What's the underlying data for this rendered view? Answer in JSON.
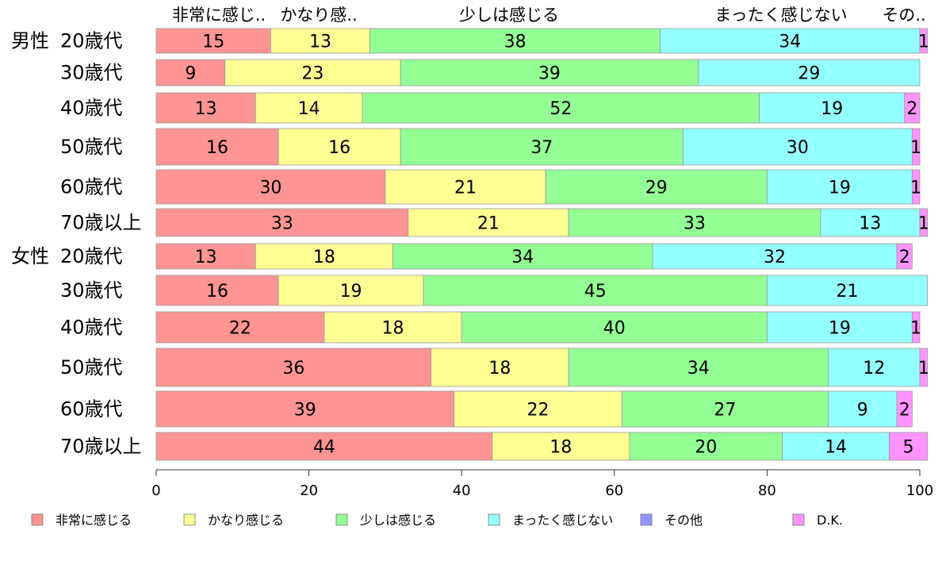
{
  "chart_data": {
    "type": "bar",
    "orientation": "horizontal",
    "stacked": true,
    "xlim": [
      0,
      100
    ],
    "x_ticks": [
      "0",
      "20",
      "40",
      "60",
      "80",
      "100"
    ],
    "column_labels": [
      "非常に感じ..",
      "かなり感..",
      "少しは感じる",
      "まったく感じない",
      "その.."
    ],
    "groups": [
      {
        "name": "男性",
        "rows": [
          0,
          1,
          2,
          3,
          4,
          5
        ]
      },
      {
        "name": "女性",
        "rows": [
          6,
          7,
          8,
          9,
          10,
          11
        ]
      }
    ],
    "categories": [
      "20歳代",
      "30歳代",
      "40歳代",
      "50歳代",
      "60歳代",
      "70歳以上",
      "20歳代",
      "30歳代",
      "40歳代",
      "50歳代",
      "60歳代",
      "70歳以上"
    ],
    "series": [
      {
        "name": "非常に感じる",
        "color": "#ff9494",
        "values": [
          15,
          9,
          13,
          16,
          30,
          33,
          13,
          16,
          22,
          36,
          39,
          44
        ]
      },
      {
        "name": "かなり感じる",
        "color": "#ffff94",
        "values": [
          13,
          23,
          14,
          16,
          21,
          21,
          18,
          19,
          18,
          18,
          22,
          18
        ]
      },
      {
        "name": "少しは感じる",
        "color": "#94ff94",
        "values": [
          38,
          39,
          52,
          37,
          29,
          33,
          34,
          45,
          40,
          34,
          27,
          20
        ]
      },
      {
        "name": "まったく感じない",
        "color": "#94ffff",
        "values": [
          34,
          29,
          19,
          30,
          19,
          13,
          32,
          21,
          19,
          12,
          9,
          14
        ]
      },
      {
        "name": "その他",
        "color": "#9494ff",
        "values": [
          0,
          0,
          0,
          0,
          0,
          0,
          0,
          0,
          0,
          0,
          0,
          0
        ]
      },
      {
        "name": "D.K.",
        "color": "#ff94ff",
        "values": [
          1,
          0,
          2,
          1,
          1,
          1,
          2,
          0,
          1,
          1,
          2,
          5
        ]
      }
    ],
    "legend_position": "bottom",
    "grid": false
  }
}
